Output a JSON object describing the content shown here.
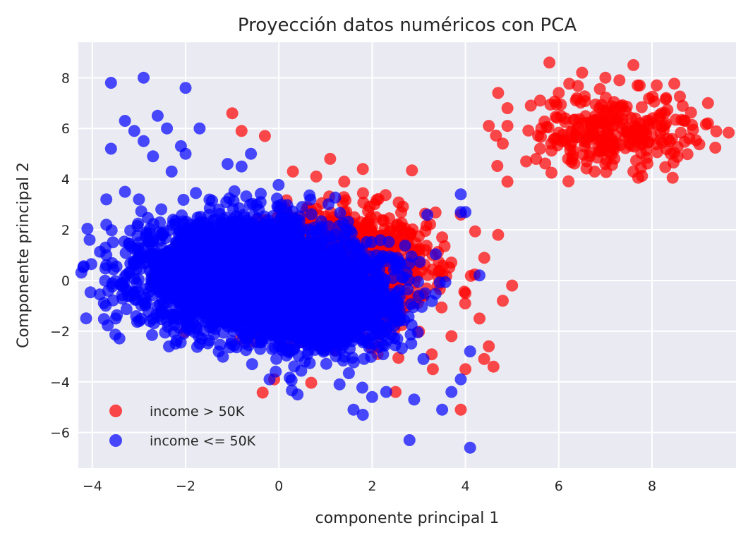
{
  "chart_data": {
    "type": "scatter",
    "title": "Proyección datos numéricos con PCA",
    "xlabel": "componente principal 1",
    "ylabel": "Componente principal 2",
    "xlim": [
      -4.3,
      9.8
    ],
    "ylim": [
      -7.4,
      9.4
    ],
    "xticks": [
      -4,
      -2,
      0,
      2,
      4,
      6,
      8
    ],
    "yticks": [
      -6,
      -4,
      -2,
      0,
      2,
      4,
      6,
      8
    ],
    "xtick_labels": [
      "−4",
      "−2",
      "0",
      "2",
      "4",
      "6",
      "8"
    ],
    "ytick_labels": [
      "−6",
      "−4",
      "−2",
      "0",
      "2",
      "4",
      "6",
      "8"
    ],
    "grid": true,
    "background": "#EAEAF2",
    "legend_position": "lower-left",
    "series": [
      {
        "name": "income > 50K",
        "color": "#FF0000",
        "opacity": 0.7,
        "clusters": [
          {
            "cx": 1.2,
            "cy": 0.4,
            "sx": 1.0,
            "sy": 1.15,
            "n": 1500
          },
          {
            "cx": 7.2,
            "cy": 5.9,
            "sx": 0.85,
            "sy": 0.75,
            "n": 260
          }
        ],
        "points": [
          [
            5.8,
            8.6
          ],
          [
            7.6,
            8.5
          ],
          [
            6.5,
            8.2
          ],
          [
            7.0,
            8.0
          ],
          [
            -1.0,
            6.6
          ],
          [
            -0.8,
            5.9
          ],
          [
            -0.3,
            5.7
          ],
          [
            4.7,
            7.4
          ],
          [
            4.9,
            6.8
          ],
          [
            4.8,
            5.4
          ],
          [
            4.9,
            3.9
          ],
          [
            4.7,
            1.8
          ],
          [
            5.0,
            -0.2
          ],
          [
            4.8,
            -0.8
          ],
          [
            4.3,
            -1.5
          ],
          [
            4.5,
            -2.6
          ],
          [
            4.4,
            -3.1
          ],
          [
            4.6,
            -3.4
          ],
          [
            4.0,
            -3.5
          ],
          [
            3.9,
            -5.1
          ],
          [
            3.3,
            -3.5
          ],
          [
            2.5,
            -4.4
          ],
          [
            3.7,
            -2.2
          ],
          [
            4.0,
            -0.5
          ],
          [
            3.5,
            1.7
          ],
          [
            3.9,
            2.6
          ],
          [
            -0.1,
            -3.9
          ],
          [
            1.8,
            4.4
          ],
          [
            1.1,
            4.8
          ],
          [
            0.8,
            4.1
          ],
          [
            0.3,
            4.3
          ],
          [
            1.4,
            3.9
          ],
          [
            9.2,
            7.0
          ],
          [
            9.2,
            6.2
          ],
          [
            8.7,
            6.3
          ],
          [
            8.8,
            5.6
          ],
          [
            8.4,
            5.0
          ],
          [
            7.6,
            4.3
          ],
          [
            7.0,
            4.6
          ],
          [
            6.2,
            4.8
          ],
          [
            5.6,
            5.2
          ],
          [
            5.4,
            6.9
          ],
          [
            5.6,
            7.1
          ],
          [
            6.0,
            7.4
          ],
          [
            4.9,
            6.1
          ],
          [
            4.5,
            6.1
          ],
          [
            7.3,
            7.9
          ],
          [
            8.1,
            7.7
          ],
          [
            8.3,
            7.2
          ],
          [
            6.6,
            4.7
          ],
          [
            5.3,
            4.7
          ]
        ]
      },
      {
        "name": "income <= 50K",
        "color": "#0000FF",
        "opacity": 0.7,
        "clusters": [
          {
            "cx": -0.8,
            "cy": 0.3,
            "sx": 1.1,
            "sy": 1.05,
            "n": 3000
          },
          {
            "cx": 0.9,
            "cy": -0.8,
            "sx": 0.9,
            "sy": 1.0,
            "n": 1200
          }
        ],
        "points": [
          [
            -3.6,
            7.8
          ],
          [
            -2.9,
            8.0
          ],
          [
            -2.0,
            7.6
          ],
          [
            -3.3,
            6.3
          ],
          [
            -2.6,
            6.5
          ],
          [
            -3.1,
            5.9
          ],
          [
            -2.4,
            6.0
          ],
          [
            -3.6,
            5.2
          ],
          [
            -1.7,
            6.0
          ],
          [
            -2.1,
            5.3
          ],
          [
            -0.6,
            5.0
          ],
          [
            -2.9,
            5.5
          ],
          [
            -2.7,
            4.9
          ],
          [
            -3.7,
            3.2
          ],
          [
            -3.7,
            2.2
          ],
          [
            -3.7,
            1.0
          ],
          [
            -3.5,
            -1.5
          ],
          [
            -3.3,
            3.5
          ],
          [
            -3.0,
            3.2
          ],
          [
            3.9,
            3.4
          ],
          [
            3.9,
            2.7
          ],
          [
            4.0,
            2.7
          ],
          [
            4.3,
            0.2
          ],
          [
            4.1,
            -2.8
          ],
          [
            4.1,
            -6.6
          ],
          [
            2.8,
            -6.3
          ],
          [
            1.8,
            -5.3
          ],
          [
            1.6,
            -5.1
          ],
          [
            3.5,
            -5.1
          ],
          [
            2.9,
            -4.7
          ],
          [
            2.0,
            -4.6
          ],
          [
            3.7,
            -4.4
          ],
          [
            3.9,
            -3.9
          ],
          [
            0.4,
            -4.5
          ],
          [
            -0.2,
            -3.9
          ],
          [
            1.3,
            -4.1
          ],
          [
            2.3,
            -4.4
          ],
          [
            3.1,
            -3.1
          ],
          [
            -2.0,
            5.0
          ],
          [
            -2.3,
            4.3
          ],
          [
            -1.1,
            4.6
          ],
          [
            -0.8,
            4.5
          ]
        ]
      }
    ]
  }
}
